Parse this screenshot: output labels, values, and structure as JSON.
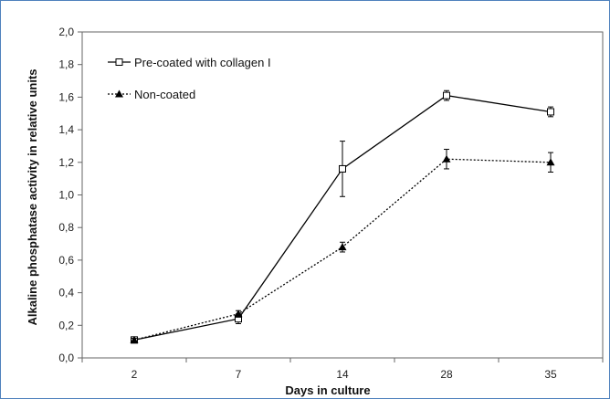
{
  "chart_data": {
    "type": "line",
    "xlabel": "Days in culture",
    "ylabel": "Alkaline phosphatase activity in relative units",
    "categories": [
      "2",
      "7",
      "14",
      "28",
      "35"
    ],
    "ylim": [
      0,
      2.0
    ],
    "yticks": [
      "0,0",
      "0,2",
      "0,4",
      "0,6",
      "0,8",
      "1,0",
      "1,2",
      "1,4",
      "1,6",
      "1,8",
      "2,0"
    ],
    "grid": false,
    "legend_position": "top-left",
    "series": [
      {
        "name": "Pre-coated with collagen I",
        "marker": "open-square",
        "line": "solid",
        "values": [
          0.11,
          0.24,
          1.16,
          1.61,
          1.51
        ],
        "errors": [
          0.01,
          0.03,
          0.17,
          0.03,
          0.03
        ]
      },
      {
        "name": "Non-coated",
        "marker": "filled-triangle",
        "line": "dotted",
        "values": [
          0.11,
          0.27,
          0.68,
          1.22,
          1.2
        ],
        "errors": [
          0.01,
          0.02,
          0.03,
          0.06,
          0.06
        ]
      }
    ]
  }
}
